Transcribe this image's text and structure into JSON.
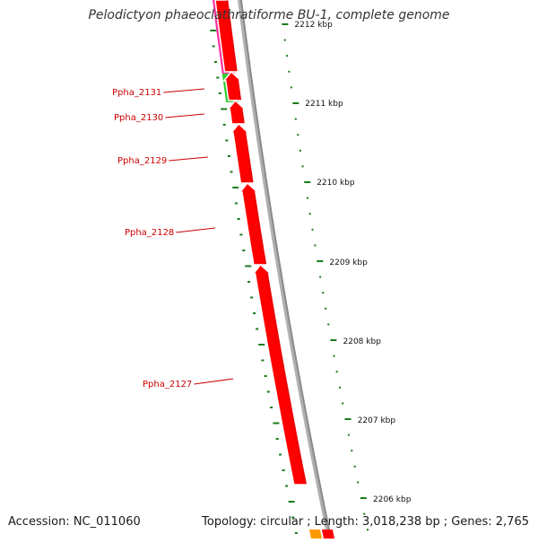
{
  "title": "Pelodictyon phaeoclathratiforme BU-1, complete genome",
  "footer": {
    "accession": "Accession: NC_011060",
    "topology": "Topology: circular",
    "length": "Length: 3,018,238 bp",
    "genes": "Genes: 2,765"
  },
  "colors": {
    "gene_red": "#ff0000",
    "gene_red_dark": "#cc0000",
    "gene_pink": "#ff2fa0",
    "gene_green": "#33cc33",
    "gene_orange": "#ff9900",
    "backbone": "#8a8a8a",
    "tick_green": "#1a7a1a",
    "label_red": "#cc0000"
  },
  "genes": [
    {
      "name": "Ppha_2131"
    },
    {
      "name": "Ppha_2130"
    },
    {
      "name": "Ppha_2129"
    },
    {
      "name": "Ppha_2128"
    },
    {
      "name": "Ppha_2127"
    }
  ],
  "scale_labels": [
    "2212 kbp",
    "2211 kbp",
    "2210 kbp",
    "2209 kbp",
    "2208 kbp",
    "2207 kbp",
    "2206 kbp"
  ]
}
